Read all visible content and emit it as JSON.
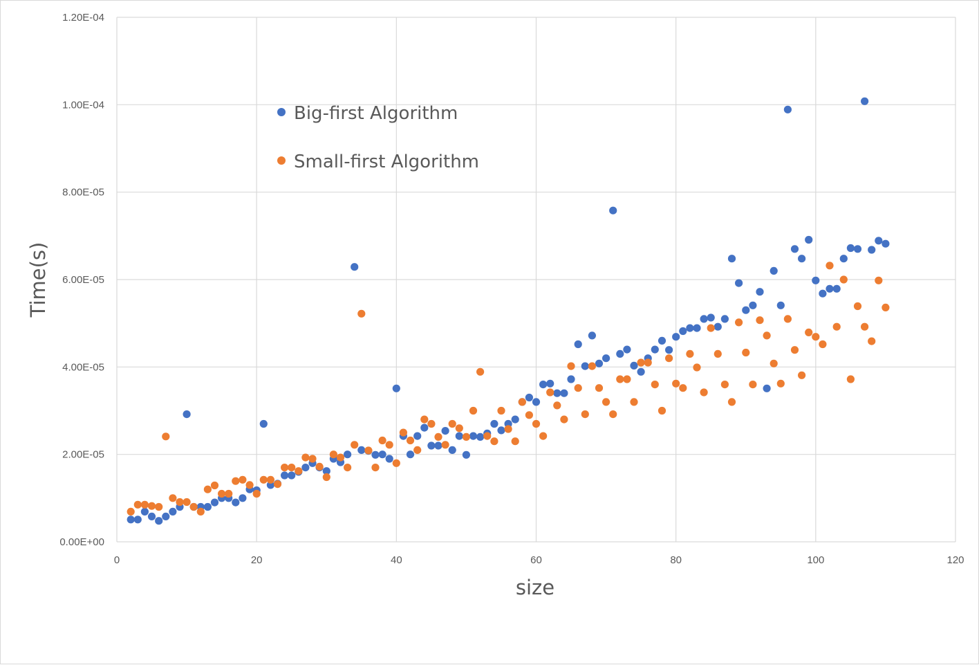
{
  "chart_data": {
    "type": "scatter",
    "xlabel": "size",
    "ylabel": "Time(s)",
    "xlim": [
      0,
      120
    ],
    "ylim": [
      0,
      0.00012
    ],
    "x_ticks": [
      0,
      20,
      40,
      60,
      80,
      100,
      120
    ],
    "x_tick_labels": [
      "0",
      "20",
      "40",
      "60",
      "80",
      "100",
      "120"
    ],
    "y_ticks": [
      0,
      2e-05,
      4e-05,
      6e-05,
      8e-05,
      0.0001,
      0.00012
    ],
    "y_tick_labels": [
      "0.00E+00",
      "2.00E-05",
      "4.00E-05",
      "6.00E-05",
      "8.00E-05",
      "1.00E-04",
      "1.20E-04"
    ],
    "grid": true,
    "legend_position": "top-left, inside plot",
    "series": [
      {
        "name": "Big-first Algorithm",
        "color": "#4472c4",
        "points": [
          [
            2,
            5.1e-06
          ],
          [
            3,
            5.1e-06
          ],
          [
            4,
            6.9e-06
          ],
          [
            5,
            5.8e-06
          ],
          [
            6,
            4.8e-06
          ],
          [
            7,
            5.8e-06
          ],
          [
            8,
            6.9e-06
          ],
          [
            9,
            8e-06
          ],
          [
            10,
            2.92e-05
          ],
          [
            11,
            8e-06
          ],
          [
            12,
            8e-06
          ],
          [
            13,
            8e-06
          ],
          [
            14,
            9e-06
          ],
          [
            15,
            1e-05
          ],
          [
            16,
            1e-05
          ],
          [
            17,
            9e-06
          ],
          [
            18,
            1e-05
          ],
          [
            19,
            1.2e-05
          ],
          [
            20,
            1.18e-05
          ],
          [
            21,
            2.7e-05
          ],
          [
            22,
            1.3e-05
          ],
          [
            23,
            1.33e-05
          ],
          [
            24,
            1.52e-05
          ],
          [
            25,
            1.52e-05
          ],
          [
            26,
            1.6e-05
          ],
          [
            27,
            1.7e-05
          ],
          [
            28,
            1.8e-05
          ],
          [
            29,
            1.7e-05
          ],
          [
            30,
            1.62e-05
          ],
          [
            31,
            1.9e-05
          ],
          [
            32,
            1.82e-05
          ],
          [
            33,
            2e-05
          ],
          [
            34,
            6.29e-05
          ],
          [
            35,
            2.1e-05
          ],
          [
            36,
            2.08e-05
          ],
          [
            37,
            1.99e-05
          ],
          [
            38,
            2e-05
          ],
          [
            39,
            1.9e-05
          ],
          [
            40,
            3.51e-05
          ],
          [
            41,
            2.42e-05
          ],
          [
            42,
            2e-05
          ],
          [
            43,
            2.42e-05
          ],
          [
            44,
            2.61e-05
          ],
          [
            45,
            2.2e-05
          ],
          [
            46,
            2.2e-05
          ],
          [
            47,
            2.54e-05
          ],
          [
            48,
            2.1e-05
          ],
          [
            49,
            2.42e-05
          ],
          [
            50,
            1.99e-05
          ],
          [
            51,
            2.42e-05
          ],
          [
            52,
            2.4e-05
          ],
          [
            53,
            2.48e-05
          ],
          [
            54,
            2.7e-05
          ],
          [
            55,
            2.55e-05
          ],
          [
            56,
            2.7e-05
          ],
          [
            57,
            2.8e-05
          ],
          [
            58,
            3.2e-05
          ],
          [
            59,
            3.3e-05
          ],
          [
            60,
            3.2e-05
          ],
          [
            61,
            3.6e-05
          ],
          [
            62,
            3.62e-05
          ],
          [
            63,
            3.4e-05
          ],
          [
            64,
            3.4e-05
          ],
          [
            65,
            3.72e-05
          ],
          [
            66,
            4.52e-05
          ],
          [
            67,
            4.02e-05
          ],
          [
            68,
            4.72e-05
          ],
          [
            69,
            4.08e-05
          ],
          [
            70,
            4.2e-05
          ],
          [
            71,
            7.58e-05
          ],
          [
            72,
            4.3e-05
          ],
          [
            73,
            4.4e-05
          ],
          [
            74,
            4.03e-05
          ],
          [
            75,
            3.89e-05
          ],
          [
            76,
            4.2e-05
          ],
          [
            77,
            4.4e-05
          ],
          [
            78,
            4.6e-05
          ],
          [
            79,
            4.39e-05
          ],
          [
            80,
            4.69e-05
          ],
          [
            81,
            4.82e-05
          ],
          [
            82,
            4.89e-05
          ],
          [
            83,
            4.89e-05
          ],
          [
            84,
            5.1e-05
          ],
          [
            85,
            5.13e-05
          ],
          [
            86,
            4.92e-05
          ],
          [
            87,
            5.1e-05
          ],
          [
            88,
            6.48e-05
          ],
          [
            89,
            5.92e-05
          ],
          [
            90,
            5.3e-05
          ],
          [
            91,
            5.41e-05
          ],
          [
            92,
            5.72e-05
          ],
          [
            93,
            3.51e-05
          ],
          [
            94,
            6.2e-05
          ],
          [
            95,
            5.41e-05
          ],
          [
            96,
            9.89e-05
          ],
          [
            97,
            6.7e-05
          ],
          [
            98,
            6.48e-05
          ],
          [
            99,
            6.91e-05
          ],
          [
            100,
            5.98e-05
          ],
          [
            101,
            5.68e-05
          ],
          [
            102,
            5.79e-05
          ],
          [
            103,
            5.79e-05
          ],
          [
            104,
            6.48e-05
          ],
          [
            105,
            6.72e-05
          ],
          [
            106,
            6.7e-05
          ],
          [
            107,
            0.0001008
          ],
          [
            108,
            6.68e-05
          ],
          [
            109,
            6.89e-05
          ],
          [
            110,
            6.82e-05
          ]
        ]
      },
      {
        "name": "Small-first Algorithm",
        "color": "#ed7d31",
        "points": [
          [
            2,
            6.9e-06
          ],
          [
            3,
            8.5e-06
          ],
          [
            4,
            8.5e-06
          ],
          [
            5,
            8.2e-06
          ],
          [
            6,
            8e-06
          ],
          [
            7,
            2.41e-05
          ],
          [
            8,
            1e-05
          ],
          [
            9,
            9.1e-06
          ],
          [
            10,
            9.1e-06
          ],
          [
            11,
            8e-06
          ],
          [
            12,
            6.9e-06
          ],
          [
            13,
            1.2e-05
          ],
          [
            14,
            1.29e-05
          ],
          [
            15,
            1.1e-05
          ],
          [
            16,
            1.1e-05
          ],
          [
            17,
            1.39e-05
          ],
          [
            18,
            1.42e-05
          ],
          [
            19,
            1.3e-05
          ],
          [
            20,
            1.1e-05
          ],
          [
            21,
            1.42e-05
          ],
          [
            22,
            1.42e-05
          ],
          [
            23,
            1.32e-05
          ],
          [
            24,
            1.7e-05
          ],
          [
            25,
            1.7e-05
          ],
          [
            26,
            1.62e-05
          ],
          [
            27,
            1.93e-05
          ],
          [
            28,
            1.9e-05
          ],
          [
            29,
            1.72e-05
          ],
          [
            30,
            1.48e-05
          ],
          [
            31,
            2e-05
          ],
          [
            32,
            1.93e-05
          ],
          [
            33,
            1.7e-05
          ],
          [
            34,
            2.22e-05
          ],
          [
            35,
            5.22e-05
          ],
          [
            36,
            2.09e-05
          ],
          [
            37,
            1.7e-05
          ],
          [
            38,
            2.32e-05
          ],
          [
            39,
            2.22e-05
          ],
          [
            40,
            1.8e-05
          ],
          [
            41,
            2.5e-05
          ],
          [
            42,
            2.32e-05
          ],
          [
            43,
            2.1e-05
          ],
          [
            44,
            2.8e-05
          ],
          [
            45,
            2.7e-05
          ],
          [
            46,
            2.4e-05
          ],
          [
            47,
            2.22e-05
          ],
          [
            48,
            2.7e-05
          ],
          [
            49,
            2.6e-05
          ],
          [
            50,
            2.4e-05
          ],
          [
            51,
            3e-05
          ],
          [
            52,
            3.89e-05
          ],
          [
            53,
            2.42e-05
          ],
          [
            54,
            2.3e-05
          ],
          [
            55,
            3e-05
          ],
          [
            56,
            2.58e-05
          ],
          [
            57,
            2.3e-05
          ],
          [
            58,
            3.2e-05
          ],
          [
            59,
            2.9e-05
          ],
          [
            60,
            2.7e-05
          ],
          [
            61,
            2.42e-05
          ],
          [
            62,
            3.42e-05
          ],
          [
            63,
            3.12e-05
          ],
          [
            64,
            2.8e-05
          ],
          [
            65,
            4.02e-05
          ],
          [
            66,
            3.52e-05
          ],
          [
            67,
            2.92e-05
          ],
          [
            68,
            4.02e-05
          ],
          [
            69,
            3.52e-05
          ],
          [
            70,
            3.2e-05
          ],
          [
            71,
            2.92e-05
          ],
          [
            72,
            3.72e-05
          ],
          [
            73,
            3.72e-05
          ],
          [
            74,
            3.2e-05
          ],
          [
            75,
            4.1e-05
          ],
          [
            76,
            4.1e-05
          ],
          [
            77,
            3.6e-05
          ],
          [
            78,
            3e-05
          ],
          [
            79,
            4.2e-05
          ],
          [
            80,
            3.62e-05
          ],
          [
            81,
            3.52e-05
          ],
          [
            82,
            4.3e-05
          ],
          [
            83,
            3.99e-05
          ],
          [
            84,
            3.42e-05
          ],
          [
            85,
            4.89e-05
          ],
          [
            86,
            4.3e-05
          ],
          [
            87,
            3.6e-05
          ],
          [
            88,
            3.2e-05
          ],
          [
            89,
            5.02e-05
          ],
          [
            90,
            4.33e-05
          ],
          [
            91,
            3.6e-05
          ],
          [
            92,
            5.07e-05
          ],
          [
            93,
            4.72e-05
          ],
          [
            94,
            4.08e-05
          ],
          [
            95,
            3.62e-05
          ],
          [
            96,
            5.1e-05
          ],
          [
            97,
            4.39e-05
          ],
          [
            98,
            3.81e-05
          ],
          [
            99,
            4.79e-05
          ],
          [
            100,
            4.69e-05
          ],
          [
            101,
            4.52e-05
          ],
          [
            102,
            6.32e-05
          ],
          [
            103,
            4.92e-05
          ],
          [
            104,
            6e-05
          ],
          [
            105,
            3.72e-05
          ],
          [
            106,
            5.39e-05
          ],
          [
            107,
            4.92e-05
          ],
          [
            108,
            4.59e-05
          ],
          [
            109,
            5.98e-05
          ],
          [
            110,
            5.36e-05
          ]
        ]
      }
    ]
  }
}
